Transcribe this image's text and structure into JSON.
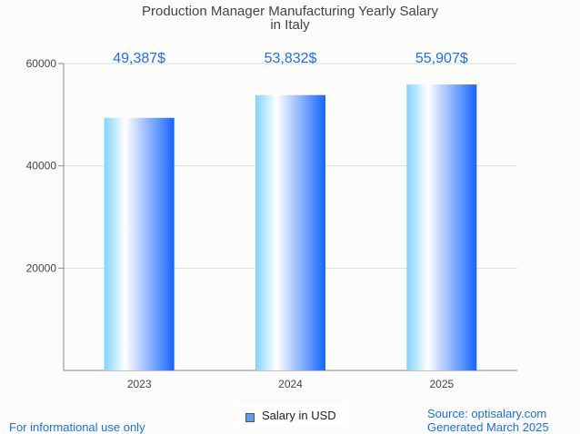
{
  "chart_data": {
    "type": "bar",
    "title": "Production Manager Manufacturing Yearly Salary",
    "subtitle": "in Italy",
    "categories": [
      "2023",
      "2024",
      "2025"
    ],
    "values": [
      49387,
      53832,
      55907
    ],
    "data_labels": [
      "49,387$",
      "53,832$",
      "55,907$"
    ],
    "yticks": [
      20000,
      40000,
      60000
    ],
    "ylim": [
      0,
      60000
    ],
    "xlabel": "",
    "ylabel": "",
    "grid": true,
    "legend": {
      "label": "Salary in USD",
      "placement": "bottom-center"
    },
    "colors": {
      "bar_light": "#7fd3ff",
      "bar_mid": "#ffffff",
      "bar_dark": "#1565ff",
      "label": "#1a6ef5"
    }
  },
  "footer": {
    "left": "For informational use only",
    "source": "Source: optisalary.com",
    "generated": "Generated March 2025"
  }
}
